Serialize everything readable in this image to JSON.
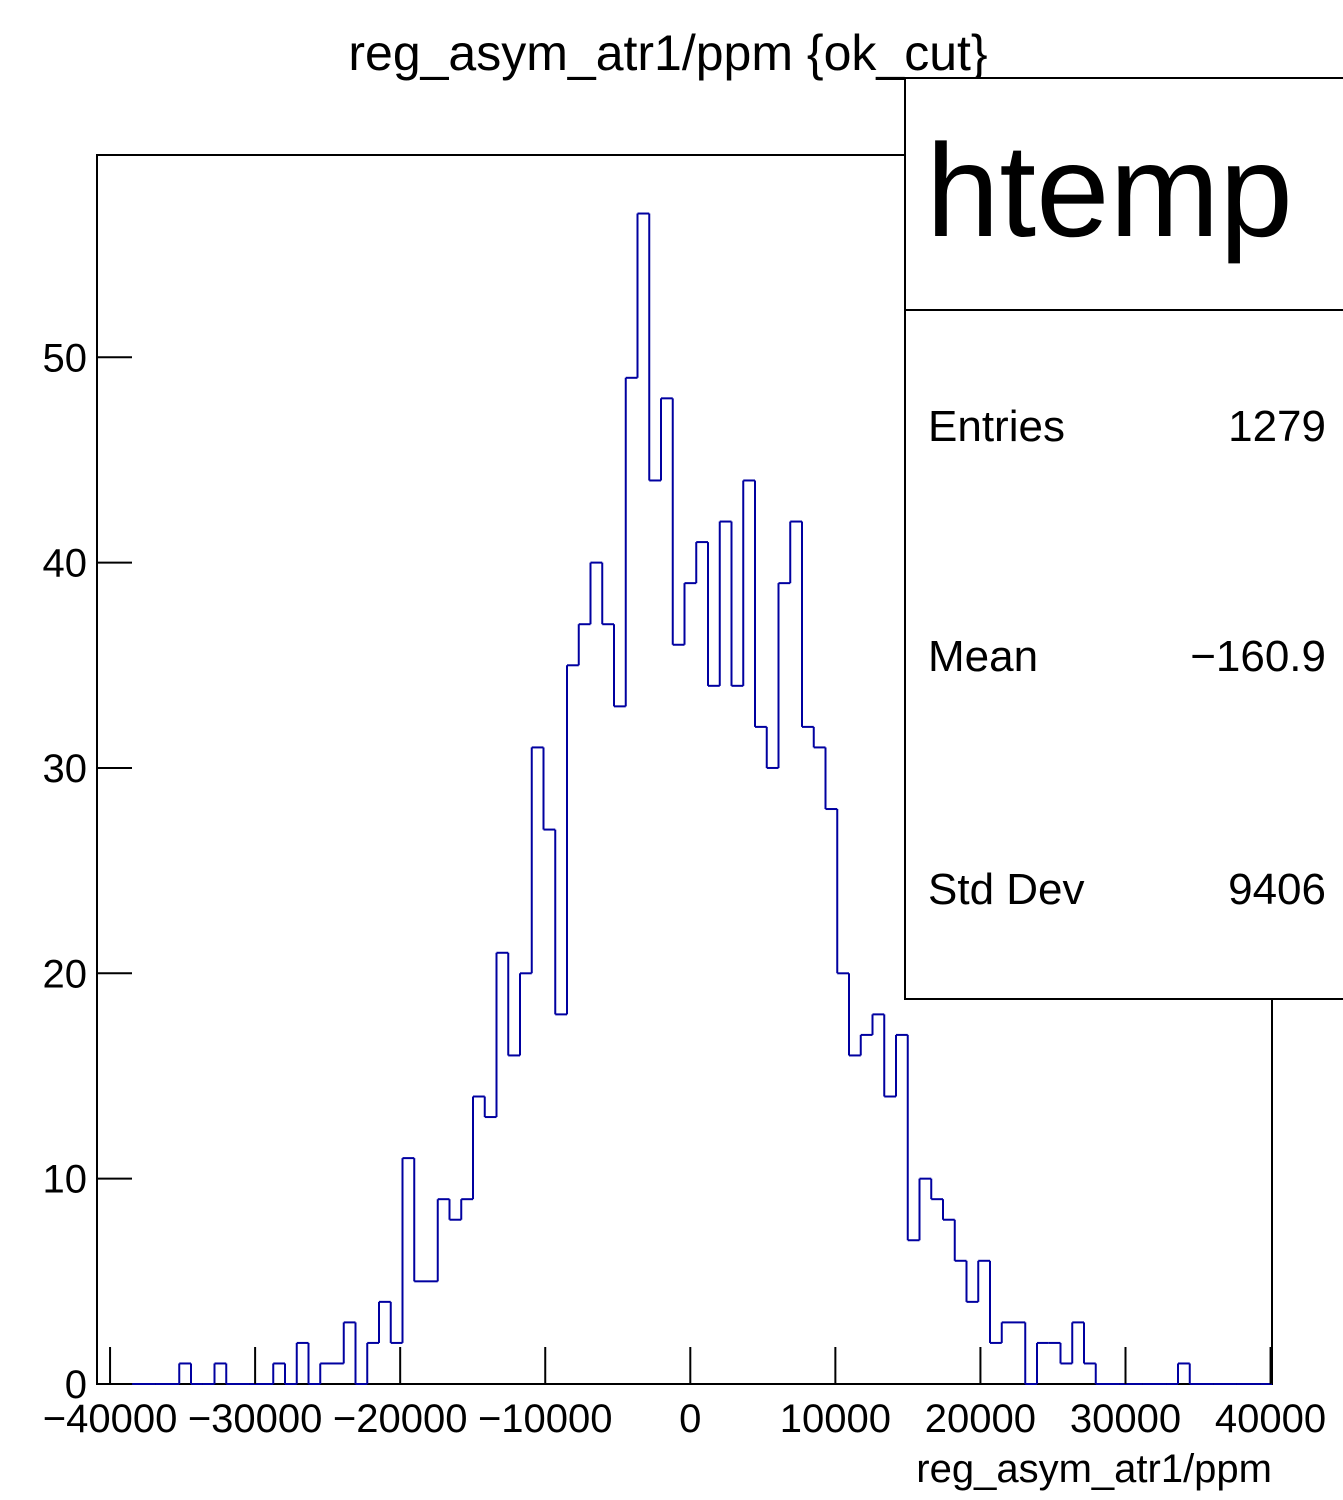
{
  "chart_data": {
    "type": "histogram",
    "title": "reg_asym_atr1/ppm {ok_cut}",
    "x_label": "reg_asym_atr1/ppm",
    "color": "#0000a0",
    "bins": [
      -40900,
      -40090,
      -39280,
      -38470,
      -37660,
      -36850,
      -36040,
      -35230,
      -34420,
      -33610,
      -32800,
      -31990,
      -31180,
      -30370,
      -29560,
      -28750,
      -27940,
      -27130,
      -26320,
      -25510,
      -24700,
      -23890,
      -23080,
      -22270,
      -21460,
      -20650,
      -19840,
      -19030,
      -18220,
      -17410,
      -16600,
      -15790,
      -14980,
      -14170,
      -13360,
      -12550,
      -11740,
      -10930,
      -10120,
      -9310,
      -8500,
      -7690,
      -6880,
      -6070,
      -5260,
      -4450,
      -3640,
      -2830,
      -2020,
      -1210,
      -400,
      410,
      1220,
      2030,
      2840,
      3650,
      4460,
      5270,
      6080,
      6890,
      7700,
      8510,
      9320,
      10130,
      10940,
      11750,
      12560,
      13370,
      14180,
      14990,
      15800,
      16610,
      17420,
      18230,
      19040,
      19850,
      20660,
      21470,
      22280,
      23090,
      23900,
      24710,
      25520,
      26330,
      27140,
      27950,
      28760,
      29570,
      30380,
      31190,
      32000,
      32810,
      33620,
      34430,
      35240,
      36050,
      36860,
      37670,
      38480,
      39290,
      40100
    ],
    "counts": [
      0,
      0,
      0,
      0,
      0,
      0,
      0,
      1,
      0,
      0,
      1,
      0,
      0,
      0,
      0,
      1,
      0,
      2,
      0,
      1,
      1,
      3,
      0,
      2,
      4,
      2,
      11,
      5,
      5,
      9,
      8,
      9,
      14,
      13,
      21,
      16,
      20,
      31,
      27,
      18,
      35,
      37,
      40,
      37,
      33,
      49,
      57,
      44,
      48,
      36,
      39,
      41,
      34,
      42,
      34,
      44,
      32,
      30,
      39,
      42,
      32,
      31,
      28,
      20,
      16,
      17,
      18,
      14,
      17,
      7,
      10,
      9,
      8,
      6,
      4,
      6,
      2,
      3,
      3,
      0,
      2,
      2,
      1,
      3,
      1,
      0,
      0,
      0,
      0,
      0,
      0,
      0,
      1,
      0,
      0,
      0,
      0,
      0,
      0,
      0
    ],
    "xlim": [
      -40900,
      40100
    ],
    "xticks": [
      {
        "value": -40000,
        "label": "−40000"
      },
      {
        "value": -30000,
        "label": "−30000"
      },
      {
        "value": -20000,
        "label": "−20000"
      },
      {
        "value": -10000,
        "label": "−10000"
      },
      0,
      10000,
      20000,
      30000,
      40000
    ],
    "ylim": [
      0,
      59.85
    ],
    "yticks": [
      0,
      10,
      20,
      30,
      40,
      50
    ],
    "grid": false,
    "stats_box": {
      "name": "htemp",
      "rows": [
        {
          "label": "Entries",
          "value": "1279"
        },
        {
          "label": "Mean",
          "value": "−160.9"
        },
        {
          "label": "Std Dev",
          "value": "9406"
        }
      ]
    }
  }
}
